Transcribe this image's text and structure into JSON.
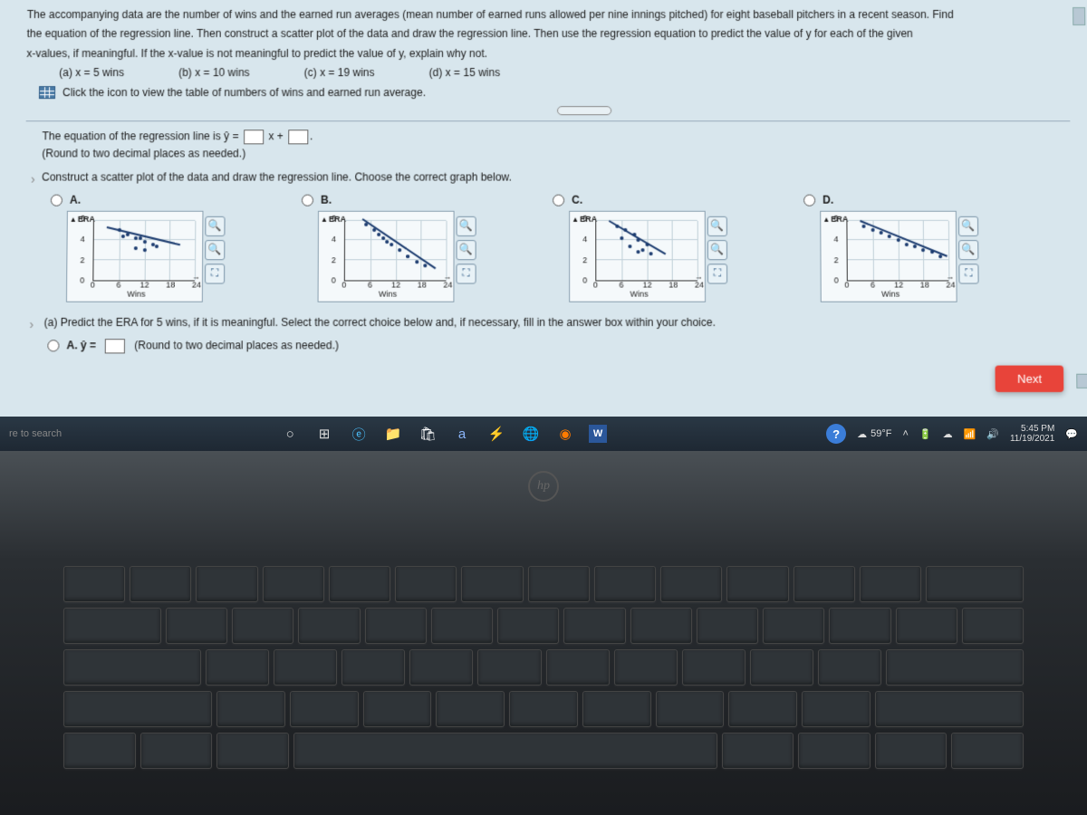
{
  "problem": {
    "line1": "The accompanying data are the number of wins and the earned run averages (mean number of earned runs allowed per nine innings pitched) for eight baseball pitchers in a recent season. Find",
    "line2": "the equation of the regression line. Then construct a scatter plot of the data and draw the regression line. Then use the regression equation to predict the value of y for each of the given",
    "line3": "x-values, if meaningful. If the x-value is not meaningful to predict the value of y, explain why not.",
    "parts": {
      "a": "(a) x = 5 wins",
      "b": "(b) x = 10 wins",
      "c": "(c) x = 19 wins",
      "d": "(d) x = 15 wins"
    },
    "icon_link": "Click the icon to view the table of numbers of wins and earned run average."
  },
  "equation": {
    "prefix": "The equation of the regression line is ŷ =",
    "mid": "x +",
    "round_note": "(Round to two decimal places as needed.)"
  },
  "scatter_prompt": "Construct a scatter plot of the data and draw the regression line. Choose the correct graph below.",
  "options": [
    "A.",
    "B.",
    "C.",
    "D."
  ],
  "chart_common": {
    "ylabel": "ERA",
    "xlabel": "Wins",
    "xticks": [
      "0",
      "6",
      "12",
      "18",
      "24"
    ],
    "yticks": [
      "0",
      "2",
      "4",
      "6"
    ],
    "xlim": [
      0,
      24
    ],
    "ylim": [
      0,
      6
    ],
    "grid_color": "#c0d0d8",
    "bg": "#f5f9fb",
    "point_color": "#1a3a6e"
  },
  "charts": {
    "A": {
      "points": [
        [
          6,
          5.0
        ],
        [
          7,
          4.4
        ],
        [
          8,
          4.6
        ],
        [
          10,
          4.2
        ],
        [
          11,
          4.2
        ],
        [
          12,
          3.8
        ],
        [
          14,
          3.6
        ],
        [
          15,
          3.4
        ],
        [
          10,
          3.2
        ],
        [
          12,
          3.0
        ]
      ],
      "line": {
        "x1": 3,
        "y1": 5.0,
        "x2": 20,
        "y2": 3.3
      }
    },
    "B": {
      "points": [
        [
          5,
          5.6
        ],
        [
          7,
          5.0
        ],
        [
          8,
          4.6
        ],
        [
          9,
          4.2
        ],
        [
          10,
          3.8
        ],
        [
          11,
          3.6
        ],
        [
          13,
          3.0
        ],
        [
          15,
          2.4
        ],
        [
          17,
          1.8
        ],
        [
          19,
          1.4
        ]
      ],
      "line": {
        "x1": 4,
        "y1": 5.8,
        "x2": 21,
        "y2": 1.0
      }
    },
    "C": {
      "points": [
        [
          5,
          5.4
        ],
        [
          6,
          4.2
        ],
        [
          7,
          5.0
        ],
        [
          8,
          3.4
        ],
        [
          9,
          4.6
        ],
        [
          10,
          2.8
        ],
        [
          10,
          4.0
        ],
        [
          11,
          3.0
        ],
        [
          12,
          3.6
        ],
        [
          13,
          2.6
        ]
      ],
      "line": {
        "x1": 3,
        "y1": 5.6,
        "x2": 16,
        "y2": 2.4
      }
    },
    "D": {
      "points": [
        [
          4,
          5.4
        ],
        [
          6,
          5.0
        ],
        [
          8,
          4.8
        ],
        [
          10,
          4.4
        ],
        [
          12,
          4.0
        ],
        [
          14,
          3.6
        ],
        [
          16,
          3.4
        ],
        [
          18,
          3.0
        ],
        [
          20,
          2.8
        ],
        [
          22,
          2.4
        ]
      ],
      "line": {
        "x1": 3,
        "y1": 5.6,
        "x2": 23,
        "y2": 2.2
      }
    }
  },
  "part_a": {
    "text": "(a) Predict the ERA for 5 wins, if it is meaningful. Select the correct choice below and, if necessary, fill in the answer box within your choice.",
    "option_a_prefix": "A.  ŷ =",
    "option_a_note": "(Round to two decimal places as needed.)"
  },
  "next_button": "Next",
  "taskbar": {
    "search": "re to search",
    "weather": "59°F",
    "time": "5:45 PM",
    "date": "11/19/2021"
  },
  "tool_buttons": {
    "zoom_in": "🔍",
    "zoom_in2": "🔍",
    "expand": "⛶"
  },
  "colors": {
    "screen_bg": "#d8e6ed",
    "next_btn": "#e8443a",
    "taskbar_top": "#2a3845",
    "taskbar_bot": "#1e2833"
  }
}
